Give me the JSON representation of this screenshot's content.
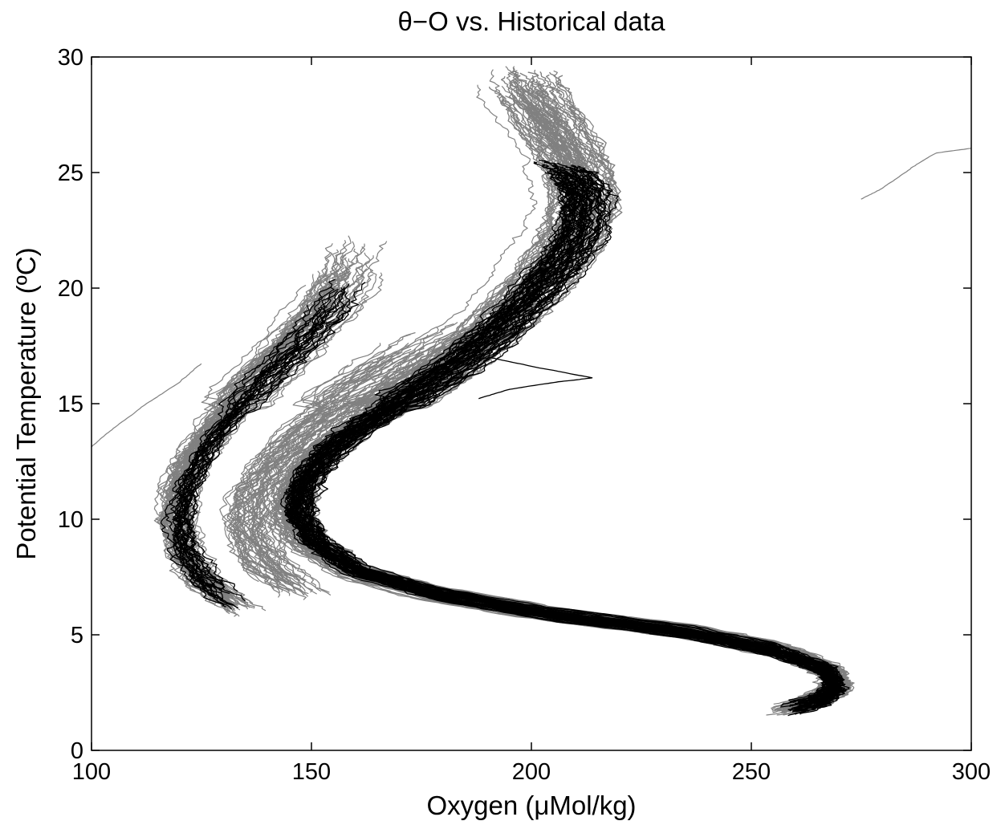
{
  "chart_data": {
    "type": "line",
    "title": "θ−O vs. Historical data",
    "xlabel": "Oxygen (μMol/kg)",
    "ylabel": "Potential Temperature (ºC)",
    "xlim": [
      100,
      300
    ],
    "ylim": [
      0,
      30
    ],
    "xticks": [
      100,
      150,
      200,
      250,
      300
    ],
    "yticks": [
      0,
      5,
      10,
      15,
      20,
      25,
      30
    ],
    "grid": false,
    "legend": "none",
    "colors": {
      "historical": "#808080",
      "new": "#000000"
    },
    "series": [
      {
        "group": "historical",
        "color": "#808080",
        "profile_type": "main",
        "count": 110,
        "spread": 5,
        "x": [
          255,
          265,
          270,
          268,
          258,
          238,
          205,
          178,
          160,
          150,
          146,
          147,
          152,
          160,
          170,
          180,
          190,
          198,
          205,
          210,
          212,
          210,
          205,
          200,
          198
        ],
        "y": [
          1.7,
          2.2,
          2.8,
          3.5,
          4.3,
          5.1,
          5.9,
          6.8,
          7.8,
          9.0,
          10.2,
          11.5,
          12.8,
          14.0,
          15.2,
          16.5,
          18.0,
          19.5,
          21.0,
          22.5,
          24.0,
          25.5,
          27.0,
          28.5,
          29.5
        ]
      },
      {
        "group": "historical",
        "color": "#808080",
        "profile_type": "shallow",
        "count": 60,
        "spread": 4,
        "x": [
          135,
          126,
          121,
          119,
          120,
          124,
          130,
          137,
          145,
          152,
          157,
          160
        ],
        "y": [
          6.0,
          7.2,
          8.5,
          10.0,
          11.5,
          13.0,
          14.5,
          16.0,
          17.5,
          19.0,
          20.5,
          22.0
        ]
      },
      {
        "group": "historical",
        "color": "#808080",
        "profile_type": "mid",
        "count": 45,
        "spread": 6,
        "x": [
          150,
          140,
          136,
          137,
          142,
          150,
          160,
          172,
          185
        ],
        "y": [
          6.5,
          8.0,
          9.5,
          11.0,
          12.5,
          14.0,
          15.5,
          17.0,
          18.5
        ]
      },
      {
        "group": "historical",
        "color": "#808080",
        "profile_type": "outlier",
        "count": 1,
        "spread": 0,
        "x": [
          100,
          105,
          112,
          120,
          125
        ],
        "y": [
          13.2,
          14.0,
          15.0,
          16.0,
          16.8
        ]
      },
      {
        "group": "historical",
        "color": "#808080",
        "profile_type": "outlier",
        "count": 1,
        "spread": 0,
        "x": [
          275,
          280,
          286,
          292,
          300
        ],
        "y": [
          23.8,
          24.3,
          25.1,
          25.8,
          26.0
        ]
      },
      {
        "group": "new",
        "color": "#000000",
        "profile_type": "main",
        "count": 55,
        "spread": 3,
        "x": [
          258,
          266,
          269,
          267,
          256,
          236,
          204,
          178,
          160,
          151,
          147,
          148,
          153,
          161,
          171,
          181,
          191,
          199,
          206,
          211,
          212,
          209,
          205
        ],
        "y": [
          1.7,
          2.2,
          2.8,
          3.5,
          4.3,
          5.1,
          5.9,
          6.8,
          7.8,
          9.0,
          10.2,
          11.5,
          12.8,
          14.0,
          15.2,
          16.5,
          18.0,
          19.5,
          21.0,
          22.5,
          24.0,
          25.0,
          25.4
        ]
      },
      {
        "group": "new",
        "color": "#000000",
        "profile_type": "shallow",
        "count": 24,
        "spread": 3,
        "x": [
          132,
          125,
          121,
          120,
          122,
          126,
          132,
          139,
          147,
          154,
          158
        ],
        "y": [
          6.3,
          7.4,
          8.7,
          10.0,
          11.5,
          13.0,
          14.5,
          16.0,
          17.5,
          19.0,
          20.5
        ]
      },
      {
        "group": "new",
        "color": "#000000",
        "profile_type": "outlier",
        "count": 1,
        "spread": 0,
        "x": [
          188,
          195,
          205,
          214,
          200,
          190
        ],
        "y": [
          15.2,
          15.6,
          15.9,
          16.1,
          16.6,
          17.0
        ]
      }
    ]
  }
}
